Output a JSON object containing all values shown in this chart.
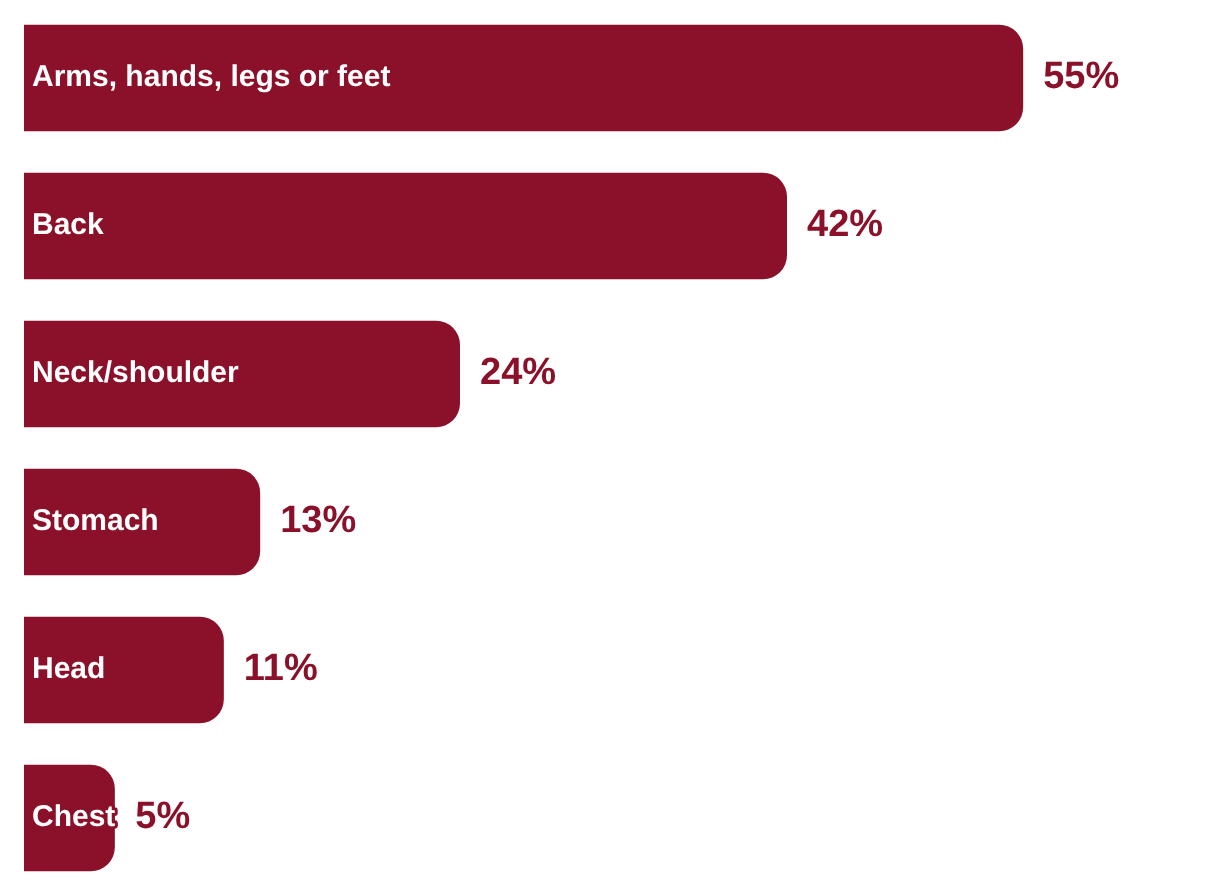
{
  "chart_data": {
    "type": "bar",
    "orientation": "horizontal",
    "categories": [
      "Arms, hands, legs or feet",
      "Back",
      "Neck/shoulder",
      "Stomach",
      "Head",
      "Chest"
    ],
    "values": [
      55,
      42,
      24,
      13,
      11,
      5
    ],
    "value_labels": [
      "55%",
      "42%",
      "24%",
      "13%",
      "11%",
      "5%"
    ],
    "color": "#8b1029",
    "tick_labels": false
  }
}
